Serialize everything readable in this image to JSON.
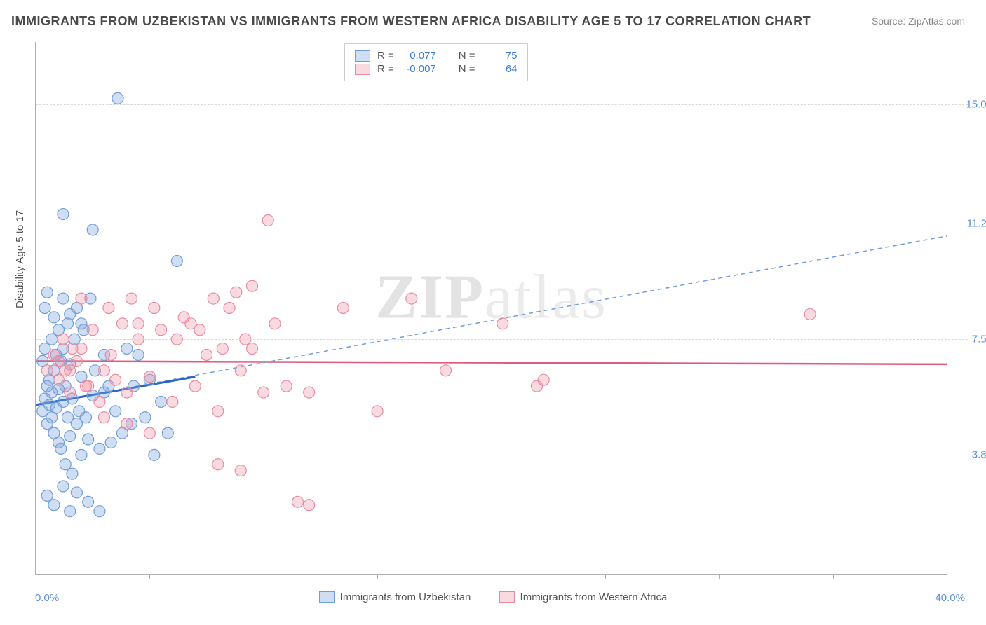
{
  "title": "IMMIGRANTS FROM UZBEKISTAN VS IMMIGRANTS FROM WESTERN AFRICA DISABILITY AGE 5 TO 17 CORRELATION CHART",
  "source_label": "Source: ZipAtlas.com",
  "y_axis_label": "Disability Age 5 to 17",
  "x_min_label": "0.0%",
  "x_max_label": "40.0%",
  "watermark_bold": "ZIP",
  "watermark_rest": "atlas",
  "chart": {
    "type": "scatter",
    "xlim": [
      0,
      40
    ],
    "ylim": [
      0,
      17
    ],
    "grid_y_values": [
      3.8,
      7.5,
      11.2,
      15.0
    ],
    "grid_y_labels": [
      "3.8%",
      "7.5%",
      "11.2%",
      "15.0%"
    ],
    "x_tick_positions": [
      5,
      10,
      15,
      20,
      25,
      30,
      35
    ],
    "background_color": "#ffffff",
    "grid_color": "#d8d8d8",
    "axis_color": "#b0b0b0",
    "marker_radius": 8,
    "marker_stroke_width": 1.2,
    "series": [
      {
        "name": "Immigrants from Uzbekistan",
        "fill": "rgba(120,160,220,0.35)",
        "stroke": "#6f9ed9",
        "R": "0.077",
        "N": "75",
        "trend_solid": {
          "x1": 0,
          "y1": 5.4,
          "x2": 7,
          "y2": 6.3,
          "color": "#2b66c4",
          "width": 3
        },
        "trend_dashed": {
          "x1": 0,
          "y1": 5.4,
          "x2": 40,
          "y2": 10.8,
          "color": "#6f9ed9",
          "width": 1.5,
          "dash": "6,5"
        },
        "points": [
          [
            0.3,
            5.2
          ],
          [
            0.4,
            5.6
          ],
          [
            0.5,
            6.0
          ],
          [
            0.5,
            4.8
          ],
          [
            0.6,
            5.4
          ],
          [
            0.6,
            6.2
          ],
          [
            0.7,
            5.0
          ],
          [
            0.7,
            5.8
          ],
          [
            0.8,
            4.5
          ],
          [
            0.8,
            6.5
          ],
          [
            0.9,
            5.3
          ],
          [
            0.9,
            7.0
          ],
          [
            1.0,
            4.2
          ],
          [
            1.0,
            5.9
          ],
          [
            1.1,
            6.8
          ],
          [
            1.1,
            4.0
          ],
          [
            1.2,
            5.5
          ],
          [
            1.2,
            7.2
          ],
          [
            1.3,
            3.5
          ],
          [
            1.3,
            6.0
          ],
          [
            1.4,
            5.0
          ],
          [
            1.4,
            8.0
          ],
          [
            1.5,
            4.4
          ],
          [
            1.5,
            6.7
          ],
          [
            1.6,
            5.6
          ],
          [
            1.6,
            3.2
          ],
          [
            1.7,
            7.5
          ],
          [
            1.8,
            4.8
          ],
          [
            1.8,
            8.5
          ],
          [
            1.9,
            5.2
          ],
          [
            2.0,
            6.3
          ],
          [
            2.0,
            3.8
          ],
          [
            2.1,
            7.8
          ],
          [
            2.2,
            5.0
          ],
          [
            2.3,
            4.3
          ],
          [
            2.4,
            8.8
          ],
          [
            2.5,
            5.7
          ],
          [
            2.6,
            6.5
          ],
          [
            2.8,
            4.0
          ],
          [
            3.0,
            7.0
          ],
          [
            0.5,
            2.5
          ],
          [
            0.8,
            2.2
          ],
          [
            1.2,
            2.8
          ],
          [
            1.5,
            2.0
          ],
          [
            1.8,
            2.6
          ],
          [
            2.3,
            2.3
          ],
          [
            2.8,
            2.0
          ],
          [
            0.4,
            8.5
          ],
          [
            0.5,
            9.0
          ],
          [
            0.8,
            8.2
          ],
          [
            1.2,
            8.8
          ],
          [
            1.5,
            8.3
          ],
          [
            2.0,
            8.0
          ],
          [
            0.3,
            6.8
          ],
          [
            0.4,
            7.2
          ],
          [
            0.7,
            7.5
          ],
          [
            1.0,
            7.8
          ],
          [
            1.2,
            11.5
          ],
          [
            2.5,
            11.0
          ],
          [
            3.6,
            15.2
          ],
          [
            6.2,
            10.0
          ],
          [
            4.5,
            7.0
          ],
          [
            5.0,
            6.2
          ],
          [
            5.5,
            5.5
          ],
          [
            4.2,
            4.8
          ],
          [
            5.8,
            4.5
          ],
          [
            4.8,
            5.0
          ],
          [
            5.2,
            3.8
          ],
          [
            3.2,
            6.0
          ],
          [
            3.5,
            5.2
          ],
          [
            3.8,
            4.5
          ],
          [
            3.0,
            5.8
          ],
          [
            3.3,
            4.2
          ],
          [
            4.0,
            7.2
          ],
          [
            4.3,
            6.0
          ]
        ]
      },
      {
        "name": "Immigrants from Western Africa",
        "fill": "rgba(240,150,170,0.35)",
        "stroke": "#e88ba0",
        "R": "-0.007",
        "N": "64",
        "trend_solid": {
          "x1": 0,
          "y1": 6.8,
          "x2": 40,
          "y2": 6.7,
          "color": "#e15a7e",
          "width": 2.5
        },
        "points": [
          [
            0.5,
            6.5
          ],
          [
            0.8,
            7.0
          ],
          [
            1.0,
            6.2
          ],
          [
            1.2,
            7.5
          ],
          [
            1.5,
            5.8
          ],
          [
            1.8,
            6.8
          ],
          [
            2.0,
            7.2
          ],
          [
            2.3,
            6.0
          ],
          [
            2.5,
            7.8
          ],
          [
            2.8,
            5.5
          ],
          [
            3.0,
            6.5
          ],
          [
            3.3,
            7.0
          ],
          [
            3.5,
            6.2
          ],
          [
            3.8,
            8.0
          ],
          [
            4.0,
            5.8
          ],
          [
            4.5,
            7.5
          ],
          [
            5.0,
            6.3
          ],
          [
            5.5,
            7.8
          ],
          [
            6.0,
            5.5
          ],
          [
            6.5,
            8.2
          ],
          [
            7.0,
            6.0
          ],
          [
            7.5,
            7.0
          ],
          [
            8.0,
            5.2
          ],
          [
            8.5,
            8.5
          ],
          [
            9.0,
            6.5
          ],
          [
            9.5,
            7.2
          ],
          [
            10.0,
            5.8
          ],
          [
            10.5,
            8.0
          ],
          [
            11.0,
            6.0
          ],
          [
            4.2,
            8.8
          ],
          [
            5.2,
            8.5
          ],
          [
            6.8,
            8.0
          ],
          [
            7.8,
            8.8
          ],
          [
            8.8,
            9.0
          ],
          [
            1.5,
            6.5
          ],
          [
            2.2,
            6.0
          ],
          [
            3.0,
            5.0
          ],
          [
            4.0,
            4.8
          ],
          [
            5.0,
            4.5
          ],
          [
            6.2,
            7.5
          ],
          [
            7.2,
            7.8
          ],
          [
            8.2,
            7.2
          ],
          [
            9.2,
            7.5
          ],
          [
            2.0,
            8.8
          ],
          [
            3.2,
            8.5
          ],
          [
            4.5,
            8.0
          ],
          [
            8.0,
            3.5
          ],
          [
            9.0,
            3.3
          ],
          [
            9.5,
            9.2
          ],
          [
            10.2,
            11.3
          ],
          [
            12.0,
            5.8
          ],
          [
            13.5,
            8.5
          ],
          [
            15.0,
            5.2
          ],
          [
            16.5,
            8.8
          ],
          [
            18.0,
            6.5
          ],
          [
            20.5,
            8.0
          ],
          [
            22.0,
            6.0
          ],
          [
            22.3,
            6.2
          ],
          [
            34.0,
            8.3
          ],
          [
            11.5,
            2.3
          ],
          [
            12.0,
            2.2
          ],
          [
            1.0,
            6.8
          ],
          [
            1.3,
            6.5
          ],
          [
            1.6,
            7.2
          ]
        ]
      }
    ]
  },
  "legend": {
    "r_label": "R =",
    "n_label": "N ="
  }
}
